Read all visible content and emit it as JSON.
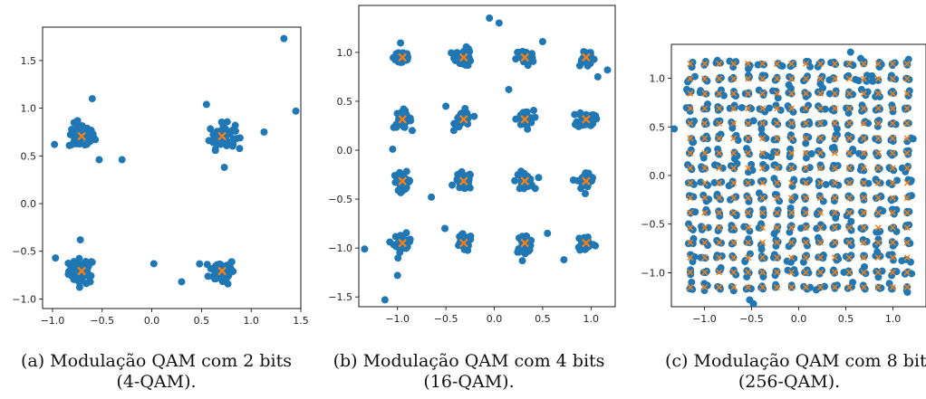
{
  "colors": {
    "points": "#1f77b4",
    "centers": "#ff7f0e",
    "axes": "#000000"
  },
  "chart_data": [
    {
      "type": "scatter",
      "modulation_order": 4,
      "constellation": [
        -0.707,
        0.707
      ],
      "xlim": [
        -1.1,
        1.5
      ],
      "ylim": [
        -1.1,
        1.85
      ],
      "xticks": [
        -1.0,
        -0.5,
        0.0,
        0.5,
        1.0,
        1.5
      ],
      "yticks": [
        -1.0,
        -0.5,
        0.0,
        0.5,
        1.0,
        1.5
      ],
      "outliers": [
        [
          1.33,
          1.73
        ],
        [
          1.45,
          0.97
        ],
        [
          -0.98,
          0.62
        ],
        [
          -0.53,
          0.46
        ],
        [
          -0.62,
          -0.82
        ],
        [
          -0.97,
          -0.57
        ],
        [
          0.02,
          -0.63
        ],
        [
          0.55,
          1.04
        ],
        [
          0.3,
          -0.82
        ],
        [
          -0.3,
          0.46
        ],
        [
          -0.72,
          -0.38
        ],
        [
          1.13,
          0.75
        ],
        [
          -0.6,
          1.1
        ],
        [
          0.73,
          0.38
        ]
      ],
      "caption": "(a) Modulação QAM com 2 bits",
      "caption_line2": "(4-QAM)."
    },
    {
      "type": "scatter",
      "modulation_order": 16,
      "constellation": [
        -0.949,
        -0.316,
        0.316,
        0.949
      ],
      "xlim": [
        -1.4,
        1.25
      ],
      "ylim": [
        -1.6,
        1.48
      ],
      "xticks": [
        -1.0,
        -0.5,
        0.0,
        0.5,
        1.0
      ],
      "yticks": [
        -1.5,
        -1.0,
        -0.5,
        0.0,
        0.5,
        1.0
      ],
      "outliers": [
        [
          -1.13,
          -1.53
        ],
        [
          -1.34,
          -1.01
        ],
        [
          -0.05,
          1.35
        ],
        [
          0.05,
          1.3
        ],
        [
          -0.5,
          0.45
        ],
        [
          -0.65,
          -0.48
        ],
        [
          -1.0,
          -1.28
        ],
        [
          0.15,
          0.62
        ],
        [
          0.72,
          -1.12
        ],
        [
          1.17,
          0.82
        ],
        [
          1.07,
          0.75
        ],
        [
          -1.05,
          0.01
        ],
        [
          0.5,
          1.11
        ],
        [
          -0.51,
          -0.8
        ],
        [
          0.55,
          -0.85
        ]
      ],
      "caption": "(b) Modulação QAM com 4 bits",
      "caption_line2": "(16-QAM)."
    },
    {
      "type": "scatter",
      "modulation_order": 256,
      "grid_size": 16,
      "grid_min": -1.15,
      "grid_max": 1.15,
      "xlim": [
        -1.35,
        1.35
      ],
      "ylim": [
        -1.35,
        1.35
      ],
      "xticks": [
        -1.0,
        -0.5,
        0.0,
        0.5,
        1.0
      ],
      "yticks": [
        -1.0,
        -0.5,
        0.0,
        0.5,
        1.0
      ],
      "outliers": [
        [
          0.55,
          1.27
        ],
        [
          -1.32,
          0.48
        ],
        [
          -0.48,
          -1.32
        ],
        [
          -0.52,
          -1.28
        ]
      ],
      "caption": "(c) Modulação QAM com 8 bits",
      "caption_line2": "(256-QAM)."
    }
  ]
}
